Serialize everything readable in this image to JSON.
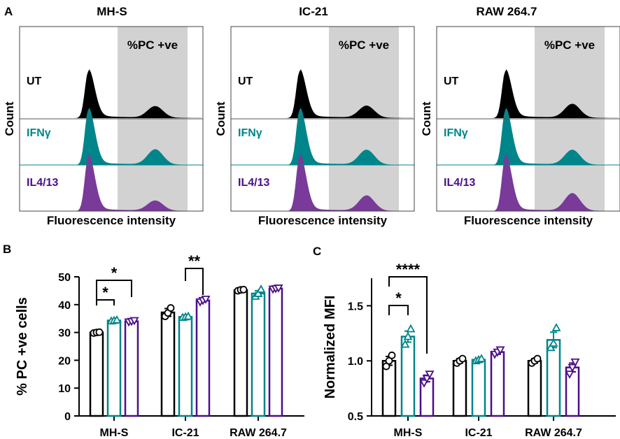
{
  "panel_letters": {
    "a": "A",
    "b": "B",
    "c": "C"
  },
  "colors": {
    "ut": "#000000",
    "ifng": "#00858a",
    "il4": "#4b0e8a",
    "il4_fill": "#7a3a99",
    "gate": "#d2d2d2"
  },
  "histograms": {
    "gate_label": "%PC +ve",
    "y_label": "Count",
    "x_label": "Fluorescence intensity",
    "conditions": [
      "UT",
      "IFNγ",
      "IL4/13"
    ],
    "cell_lines": [
      {
        "name": "MH-S",
        "positive_peak_height": [
          0.25,
          0.33,
          0.22
        ]
      },
      {
        "name": "IC-21",
        "positive_peak_height": [
          0.26,
          0.32,
          0.33
        ]
      },
      {
        "name": "RAW 264.7",
        "positive_peak_height": [
          0.3,
          0.32,
          0.38
        ]
      }
    ]
  },
  "chart_data": [
    {
      "type": "bar",
      "panel": "B",
      "title": "",
      "ylabel": "% PC +ve cells",
      "xlabel": "",
      "ylim": [
        0,
        50
      ],
      "yticks": [
        0,
        10,
        20,
        30,
        40,
        50
      ],
      "categories": [
        "MH-S",
        "IC-21",
        "RAW 264.7"
      ],
      "series": [
        {
          "name": "UT",
          "marker": "circle",
          "values": [
            30,
            37.2,
            45.2
          ],
          "sem": [
            0.3,
            1.4,
            0.3
          ],
          "points": [
            [
              29.8,
              30,
              30.1
            ],
            [
              35.8,
              37,
              38.8
            ],
            [
              45,
              45.3,
              45.4
            ]
          ]
        },
        {
          "name": "IFNγ",
          "marker": "triangle-up",
          "values": [
            34.3,
            35.6,
            44
          ],
          "sem": [
            0.3,
            0.3,
            1.0
          ],
          "points": [
            [
              34.1,
              34.3,
              34.5
            ],
            [
              35.4,
              35.6,
              35.8
            ],
            [
              43,
              44,
              45.5
            ]
          ]
        },
        {
          "name": "IL4/13",
          "marker": "triangle-down",
          "values": [
            34,
            41.5,
            45.8
          ],
          "sem": [
            0.3,
            0.5,
            0.2
          ],
          "points": [
            [
              33.8,
              34,
              34.3
            ],
            [
              41,
              41.5,
              42
            ],
            [
              45.6,
              45.8,
              46
            ]
          ]
        }
      ],
      "significance": [
        {
          "category": 0,
          "from": 0,
          "to": 1,
          "label": "*"
        },
        {
          "category": 0,
          "from": 0,
          "to": 2,
          "label": "*"
        },
        {
          "category": 1,
          "from": 1,
          "to": 2,
          "label": "**"
        }
      ]
    },
    {
      "type": "bar",
      "panel": "C",
      "title": "",
      "ylabel": "Normalized MFI",
      "xlabel": "",
      "ylim": [
        0.5,
        1.75
      ],
      "yticks": [
        0.5,
        1.0,
        1.5
      ],
      "categories": [
        "MH-S",
        "IC-21",
        "RAW 264.7"
      ],
      "series": [
        {
          "name": "UT",
          "marker": "circle",
          "values": [
            1.0,
            1.0,
            1.0
          ],
          "sem": [
            0.04,
            0.02,
            0.02
          ],
          "points": [
            [
              0.95,
              1.0,
              1.05
            ],
            [
              0.98,
              1.0,
              1.02
            ],
            [
              0.98,
              1.0,
              1.02
            ]
          ]
        },
        {
          "name": "IFNγ",
          "marker": "triangle-up",
          "values": [
            1.22,
            1.01,
            1.19
          ],
          "sem": [
            0.05,
            0.01,
            0.07
          ],
          "points": [
            [
              1.15,
              1.22,
              1.29
            ],
            [
              1.0,
              1.01,
              1.02
            ],
            [
              1.12,
              1.16,
              1.3
            ]
          ]
        },
        {
          "name": "IL4/13",
          "marker": "triangle-down",
          "values": [
            0.84,
            1.08,
            0.94
          ],
          "sem": [
            0.03,
            0.02,
            0.04
          ],
          "points": [
            [
              0.8,
              0.84,
              0.88
            ],
            [
              1.06,
              1.08,
              1.1
            ],
            [
              0.88,
              0.94,
              0.99
            ]
          ]
        }
      ],
      "significance": [
        {
          "category": 0,
          "from": 0,
          "to": 1,
          "label": "*"
        },
        {
          "category": 0,
          "from": 0,
          "to": 2,
          "label": "****"
        }
      ]
    }
  ]
}
